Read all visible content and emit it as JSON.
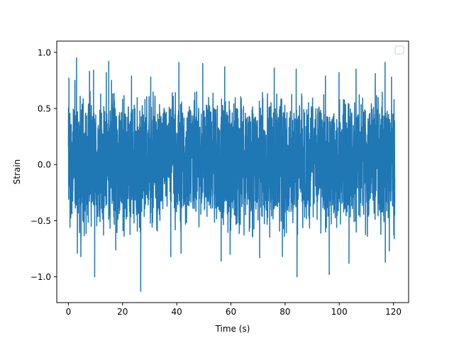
{
  "chart_data": {
    "type": "line",
    "title": "",
    "xlabel": "Time (s)",
    "ylabel": "Strain",
    "xlim": [
      -4.3,
      125.6
    ],
    "ylim": [
      -1.23,
      1.1
    ],
    "x_ticks": [
      0,
      20,
      40,
      60,
      80,
      100,
      120
    ],
    "x_tick_labels": [
      "0",
      "20",
      "40",
      "60",
      "80",
      "100",
      "120"
    ],
    "y_ticks": [
      -1.0,
      -0.5,
      0.0,
      0.5,
      1.0
    ],
    "y_tick_labels": [
      "−1.0",
      "−0.5",
      "0.0",
      "0.5",
      "1.0"
    ],
    "grid": false,
    "legend": {
      "location": "upper right",
      "entries": []
    },
    "series": [
      {
        "color": "#1f77b4",
        "x_range": [
          0,
          120.5
        ],
        "description_values": {
          "typical_band": [
            -0.5,
            0.55
          ],
          "max": 0.95,
          "min": -1.13,
          "min_at_time": 26.7,
          "max_at_time": 3.0
        },
        "spikes": [
          {
            "x": 0.2,
            "y": 0.77
          },
          {
            "x": 0.6,
            "y": -0.56
          },
          {
            "x": 2.4,
            "y": 0.75
          },
          {
            "x": 3.0,
            "y": 0.95
          },
          {
            "x": 3.3,
            "y": -0.79
          },
          {
            "x": 4.6,
            "y": -0.82
          },
          {
            "x": 7.8,
            "y": 0.83
          },
          {
            "x": 9.3,
            "y": 0.84
          },
          {
            "x": 9.7,
            "y": -1.0
          },
          {
            "x": 14.0,
            "y": 0.82
          },
          {
            "x": 14.9,
            "y": 0.92
          },
          {
            "x": 15.9,
            "y": 0.75
          },
          {
            "x": 17.5,
            "y": -0.76
          },
          {
            "x": 23.3,
            "y": 0.79
          },
          {
            "x": 26.7,
            "y": -1.13
          },
          {
            "x": 30.4,
            "y": 0.78
          },
          {
            "x": 37.8,
            "y": -0.82
          },
          {
            "x": 40.8,
            "y": 0.91
          },
          {
            "x": 41.6,
            "y": -0.79
          },
          {
            "x": 49.6,
            "y": 0.9
          },
          {
            "x": 56.4,
            "y": -0.86
          },
          {
            "x": 57.7,
            "y": 0.87
          },
          {
            "x": 59.7,
            "y": -0.8
          },
          {
            "x": 70.6,
            "y": -0.83
          },
          {
            "x": 76.0,
            "y": 0.86
          },
          {
            "x": 79.0,
            "y": -0.82
          },
          {
            "x": 84.1,
            "y": 0.85
          },
          {
            "x": 84.4,
            "y": -1.0
          },
          {
            "x": 94.9,
            "y": 0.79
          },
          {
            "x": 96.3,
            "y": -0.98
          },
          {
            "x": 99.9,
            "y": 0.82
          },
          {
            "x": 103.6,
            "y": -0.88
          },
          {
            "x": 106.2,
            "y": 0.85
          },
          {
            "x": 113.3,
            "y": 0.81
          },
          {
            "x": 117.0,
            "y": -0.87
          },
          {
            "x": 116.9,
            "y": 0.91
          },
          {
            "x": 118.5,
            "y": -0.77
          },
          {
            "x": 119.3,
            "y": 0.78
          },
          {
            "x": 120.3,
            "y": -0.66
          }
        ]
      }
    ]
  }
}
